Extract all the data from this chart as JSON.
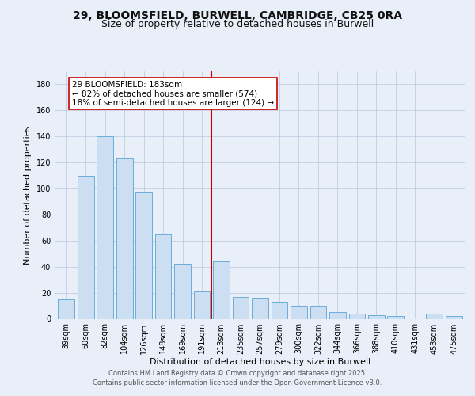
{
  "title_line1": "29, BLOOMSFIELD, BURWELL, CAMBRIDGE, CB25 0RA",
  "title_line2": "Size of property relative to detached houses in Burwell",
  "xlabel": "Distribution of detached houses by size in Burwell",
  "ylabel": "Number of detached properties",
  "categories": [
    "39sqm",
    "60sqm",
    "82sqm",
    "104sqm",
    "126sqm",
    "148sqm",
    "169sqm",
    "191sqm",
    "213sqm",
    "235sqm",
    "257sqm",
    "279sqm",
    "300sqm",
    "322sqm",
    "344sqm",
    "366sqm",
    "388sqm",
    "410sqm",
    "431sqm",
    "453sqm",
    "475sqm"
  ],
  "values": [
    15,
    110,
    140,
    123,
    97,
    65,
    42,
    21,
    44,
    17,
    16,
    13,
    10,
    10,
    5,
    4,
    3,
    2,
    0,
    4,
    2
  ],
  "bar_color": "#ccdff2",
  "bar_edge_color": "#6aaed6",
  "annotation_line1": "29 BLOOMSFIELD: 183sqm",
  "annotation_line2": "← 82% of detached houses are smaller (574)",
  "annotation_line3": "18% of semi-detached houses are larger (124) →",
  "annotation_box_color": "#ffffff",
  "annotation_box_edge": "#cc0000",
  "vline_color": "#cc0000",
  "vline_x_index": 7.5,
  "ylim": [
    0,
    190
  ],
  "yticks": [
    0,
    20,
    40,
    60,
    80,
    100,
    120,
    140,
    160,
    180
  ],
  "footer_line1": "Contains HM Land Registry data © Crown copyright and database right 2025.",
  "footer_line2": "Contains public sector information licensed under the Open Government Licence v3.0.",
  "background_color": "#e8eff9",
  "plot_bg_color": "#e8eff9",
  "title_fontsize": 10,
  "subtitle_fontsize": 9,
  "axis_label_fontsize": 8,
  "tick_fontsize": 7,
  "footer_fontsize": 6,
  "annotation_fontsize": 7.5
}
